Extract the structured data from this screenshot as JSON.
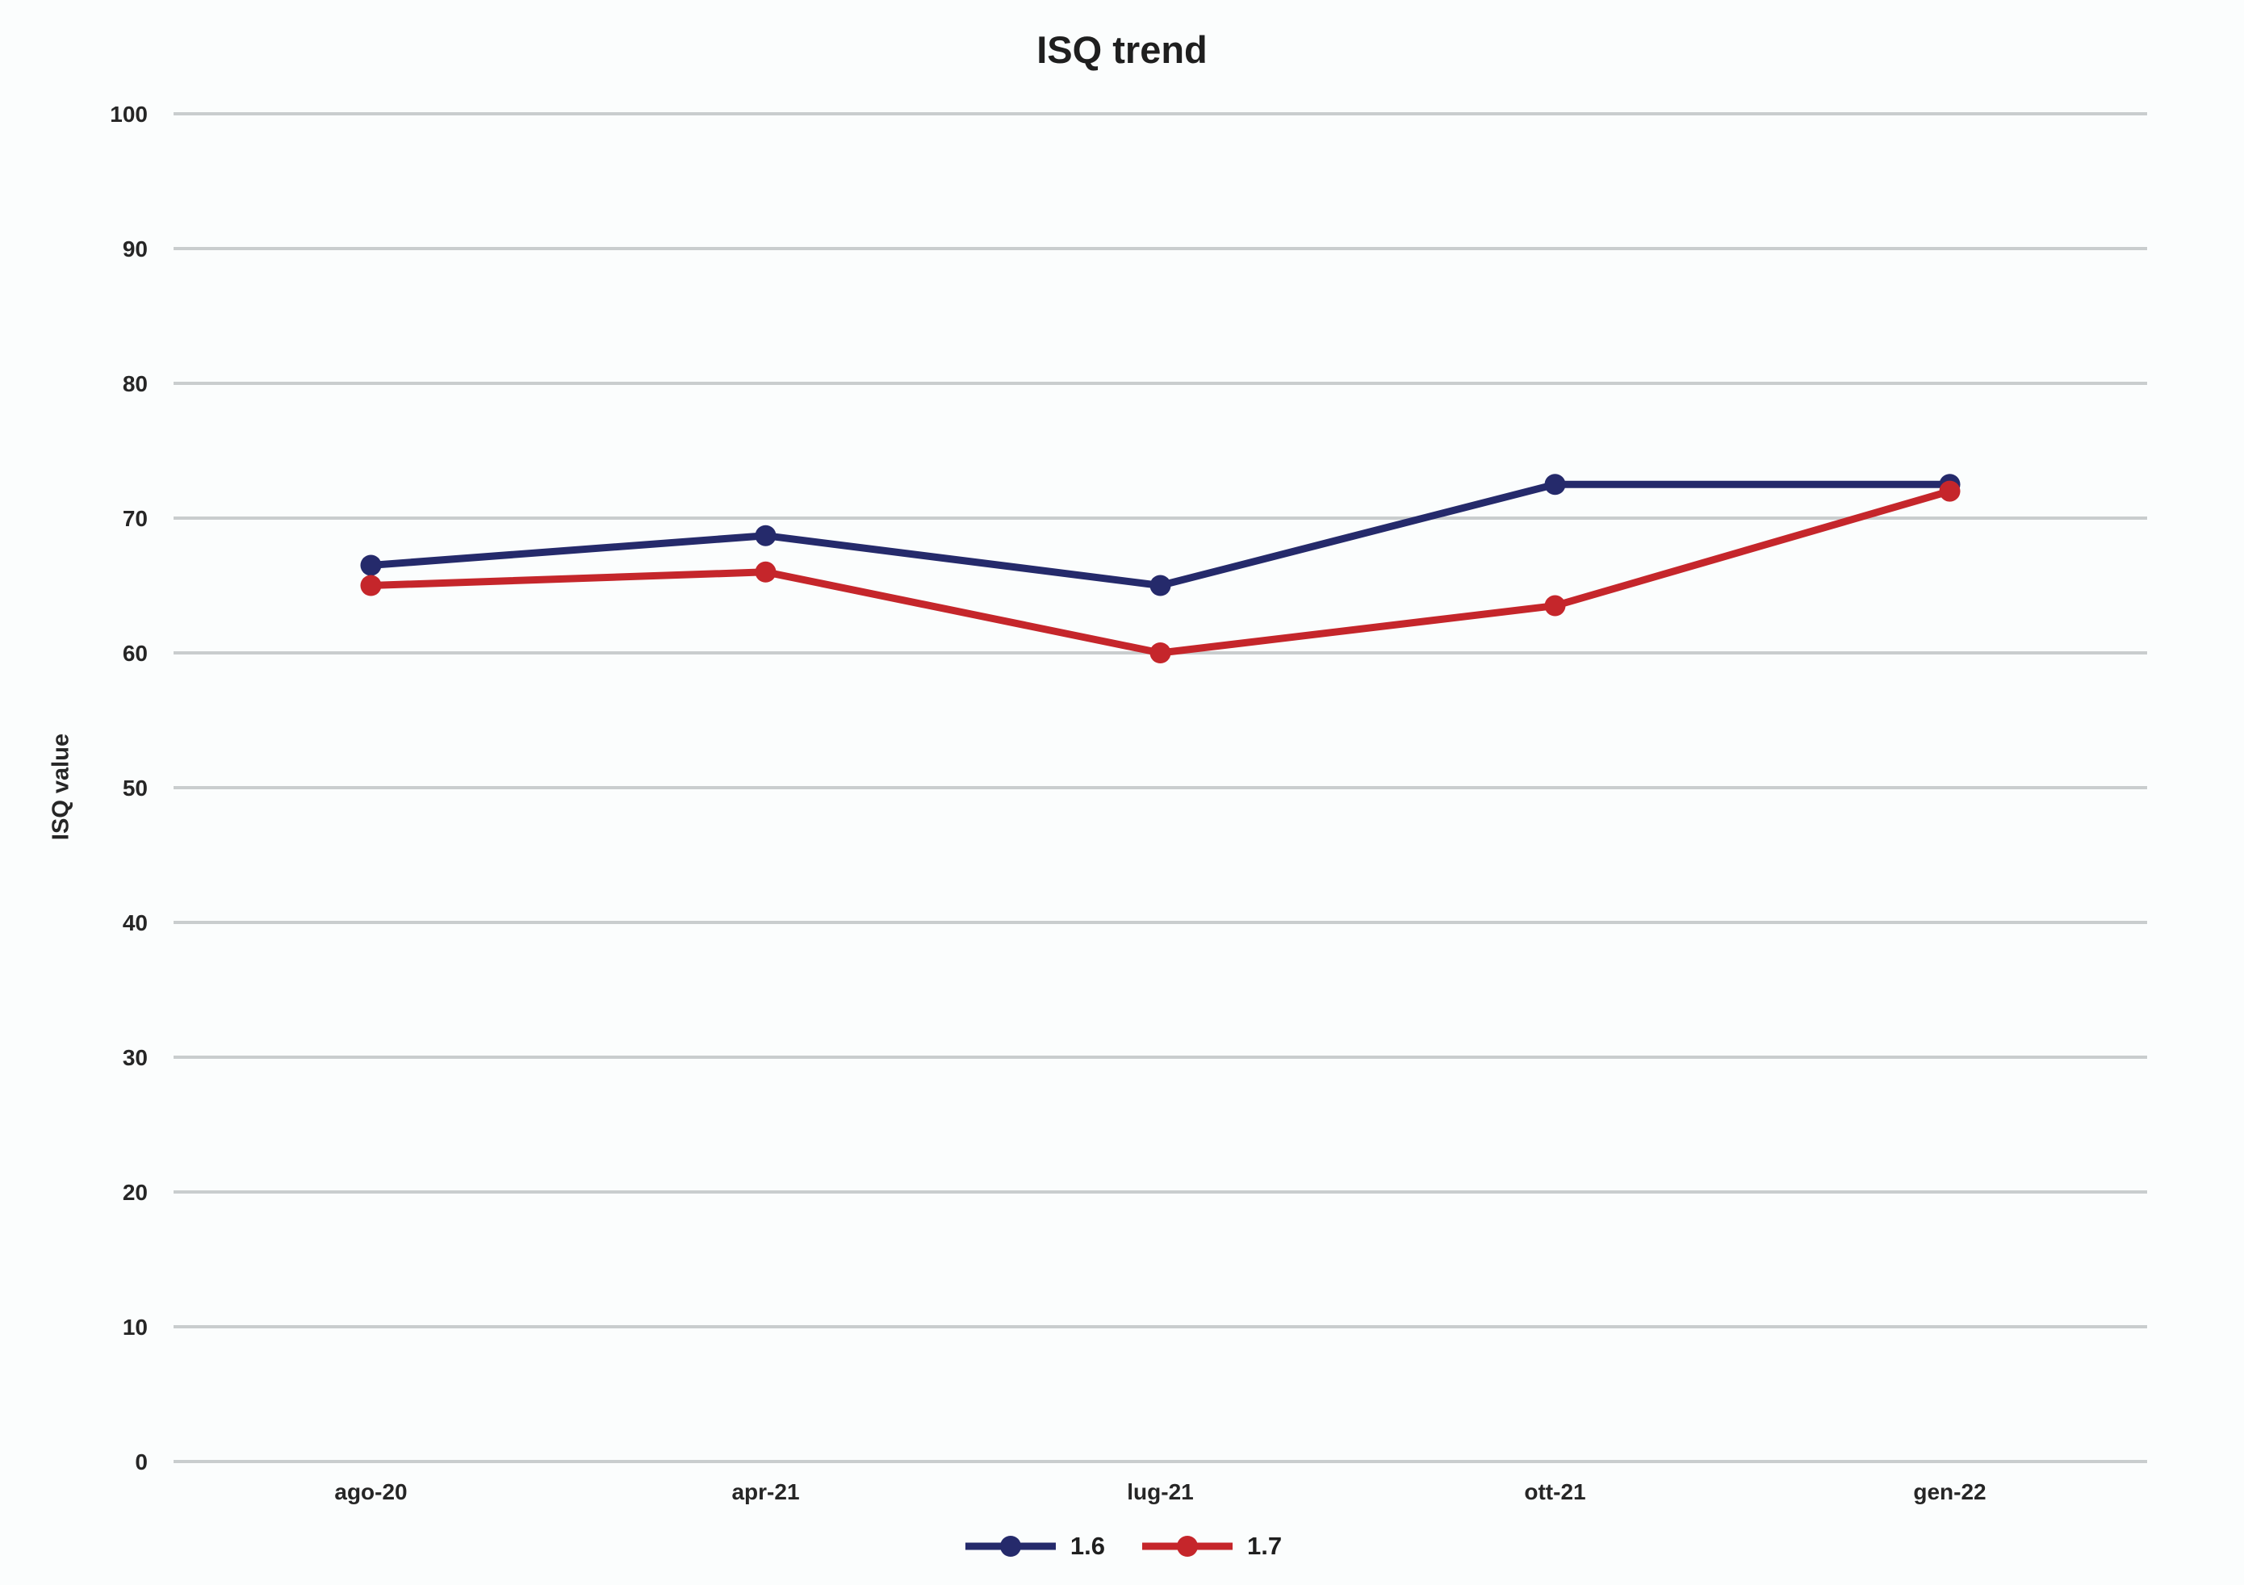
{
  "page": {
    "background": "#FBFDFD"
  },
  "chart_data": {
    "type": "line",
    "title": "ISQ trend",
    "xlabel": "",
    "ylabel": "ISQ value",
    "categories": [
      "ago-20",
      "apr-21",
      "lug-21",
      "ott-21",
      "gen-22"
    ],
    "series": [
      {
        "name": "1.6",
        "color": "#252A6B",
        "values": [
          66.5,
          68.7,
          65,
          72.5,
          72.5
        ]
      },
      {
        "name": "1.7",
        "color": "#C5262B",
        "values": [
          65,
          66,
          60,
          63.5,
          72
        ]
      }
    ],
    "ylim": [
      0,
      100
    ],
    "ytick_step": 10,
    "grid": true,
    "gridline_color": "#C9CDCE",
    "text_color": "#262626",
    "marker": "circle",
    "legend_position": "bottom"
  }
}
